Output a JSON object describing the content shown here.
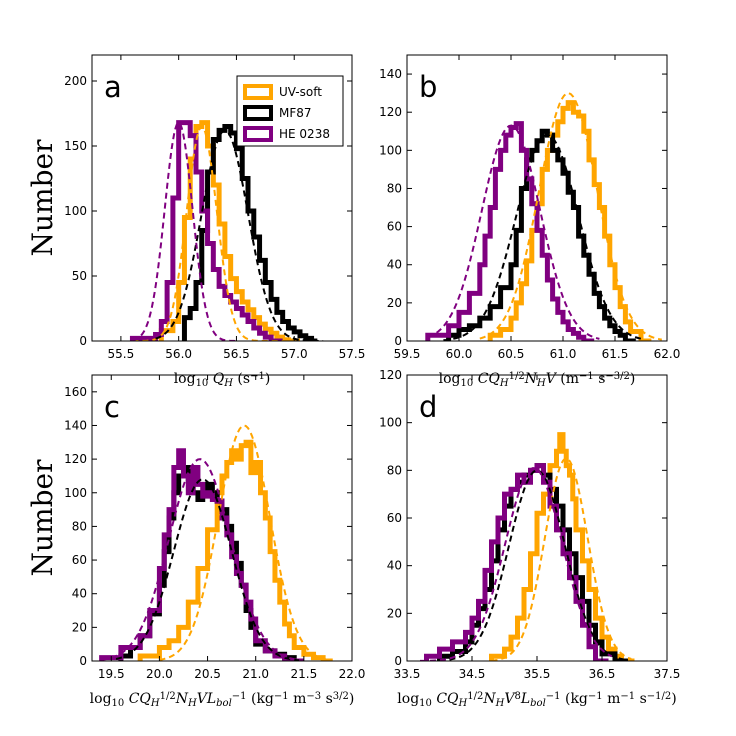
{
  "colors": {
    "uv_soft": "#ffa500",
    "mf87": "#000000",
    "he0238": "#800080"
  },
  "legend": [
    "UV-soft",
    "MF87",
    "HE 0238"
  ],
  "chart_data": [
    {
      "id": "a",
      "type": "histogram",
      "letter": "a",
      "xlim": [
        55.25,
        57.5
      ],
      "ylim": [
        0,
        220
      ],
      "xticks": [
        55.5,
        56.0,
        56.5,
        57.0,
        57.5
      ],
      "xtick_labels": [
        "55.5",
        "56.0",
        "56.5",
        "57.0",
        "57.5"
      ],
      "yticks": [
        0,
        50,
        100,
        150,
        200
      ],
      "ytick_labels": [
        "0",
        "50",
        "100",
        "150",
        "200"
      ],
      "ylabel": "Number",
      "xlabel": {
        "pre": "log",
        "sub1": "10",
        "main": "Q",
        "sub2": "H",
        "post": " (s",
        "sup": "−1",
        "end": ")"
      },
      "series": [
        {
          "name": "UV-soft",
          "edges": [
            55.85,
            55.95,
            56.0,
            56.05,
            56.1,
            56.15,
            56.2,
            56.25,
            56.3,
            56.35,
            56.4,
            56.45,
            56.5,
            56.55,
            56.6,
            56.65,
            56.7,
            56.75,
            56.8,
            56.85,
            56.9,
            56.95,
            57.05
          ],
          "values": [
            8,
            15,
            45,
            95,
            140,
            165,
            168,
            150,
            120,
            90,
            65,
            48,
            38,
            30,
            24,
            18,
            13,
            9,
            6,
            3,
            1,
            0
          ],
          "fit": {
            "mu": 56.2,
            "sigma": 0.13,
            "amp": 165,
            "range": [
              55.6,
              57.0
            ]
          }
        },
        {
          "name": "MF87",
          "edges": [
            56.05,
            56.1,
            56.15,
            56.2,
            56.25,
            56.3,
            56.35,
            56.4,
            56.45,
            56.5,
            56.55,
            56.6,
            56.65,
            56.7,
            56.75,
            56.8,
            56.85,
            56.9,
            56.95,
            57.0,
            57.05,
            57.1,
            57.15,
            57.2
          ],
          "values": [
            18,
            25,
            45,
            85,
            130,
            155,
            162,
            165,
            160,
            148,
            125,
            100,
            80,
            62,
            45,
            32,
            22,
            15,
            10,
            7,
            4,
            2,
            0
          ],
          "fit": {
            "mu": 56.4,
            "sigma": 0.2,
            "amp": 162,
            "range": [
              55.8,
              57.25
            ]
          }
        },
        {
          "name": "HE 0238",
          "edges": [
            55.6,
            55.8,
            55.85,
            55.9,
            55.95,
            56.0,
            56.05,
            56.1,
            56.15,
            56.2,
            56.25,
            56.3,
            56.35,
            56.4,
            56.45,
            56.5,
            56.55,
            56.6,
            56.65,
            56.7,
            56.75,
            56.8,
            56.9
          ],
          "values": [
            2,
            5,
            15,
            45,
            110,
            168,
            168,
            158,
            130,
            100,
            75,
            55,
            42,
            35,
            30,
            25,
            20,
            15,
            10,
            6,
            3,
            0
          ],
          "fit": {
            "mu": 56.0,
            "sigma": 0.12,
            "amp": 168,
            "range": [
              55.6,
              56.5
            ]
          }
        }
      ]
    },
    {
      "id": "b",
      "type": "histogram",
      "letter": "b",
      "xlim": [
        59.5,
        62.0
      ],
      "ylim": [
        0,
        150
      ],
      "xticks": [
        59.5,
        60.0,
        60.5,
        61.0,
        61.5,
        62.0
      ],
      "xtick_labels": [
        "59.5",
        "60.0",
        "60.5",
        "61.0",
        "61.5",
        "62.0"
      ],
      "yticks": [
        0,
        20,
        40,
        60,
        80,
        100,
        120,
        140
      ],
      "ytick_labels": [
        "0",
        "20",
        "40",
        "60",
        "80",
        "100",
        "120",
        "140"
      ],
      "ylabel": "",
      "xlabel": {
        "pre": "log",
        "sub1": "10",
        "main": "CQ",
        "sub2": "H",
        "sup1": "1/2",
        "main2": "N",
        "sub3": "H",
        "main3": "V",
        "post": " (m",
        "sup": "−1",
        "mid": "s",
        "sup2": "−3/2",
        "end": ")"
      },
      "series": [
        {
          "name": "UV-soft",
          "edges": [
            60.3,
            60.4,
            60.5,
            60.55,
            60.6,
            60.65,
            60.7,
            60.75,
            60.8,
            60.85,
            60.9,
            60.95,
            61.0,
            61.05,
            61.1,
            61.15,
            61.2,
            61.25,
            61.3,
            61.35,
            61.4,
            61.45,
            61.5,
            61.55,
            61.6,
            61.65,
            61.75,
            61.85
          ],
          "values": [
            3,
            6,
            12,
            20,
            30,
            42,
            58,
            72,
            90,
            100,
            108,
            115,
            122,
            125,
            120,
            118,
            110,
            95,
            82,
            70,
            55,
            40,
            28,
            18,
            10,
            5,
            0
          ],
          "fit": {
            "mu": 61.05,
            "sigma": 0.28,
            "amp": 130,
            "range": [
              60.2,
              61.95
            ]
          }
        },
        {
          "name": "MF87",
          "edges": [
            59.9,
            60.0,
            60.1,
            60.2,
            60.3,
            60.4,
            60.5,
            60.55,
            60.6,
            60.65,
            60.7,
            60.75,
            60.8,
            60.85,
            60.9,
            60.95,
            61.0,
            61.05,
            61.1,
            61.15,
            61.2,
            61.25,
            61.3,
            61.35,
            61.4,
            61.45,
            61.5,
            61.55,
            61.6,
            61.7
          ],
          "values": [
            3,
            6,
            8,
            12,
            18,
            28,
            40,
            58,
            80,
            95,
            100,
            105,
            110,
            108,
            100,
            95,
            88,
            78,
            70,
            55,
            45,
            35,
            25,
            18,
            12,
            8,
            5,
            3,
            0
          ],
          "fit": {
            "mu": 60.85,
            "sigma": 0.3,
            "amp": 108,
            "range": [
              59.85,
              61.75
            ]
          }
        },
        {
          "name": "HE 0238",
          "edges": [
            59.7,
            59.9,
            60.0,
            60.1,
            60.2,
            60.25,
            60.3,
            60.35,
            60.4,
            60.45,
            60.5,
            60.55,
            60.6,
            60.65,
            60.7,
            60.75,
            60.8,
            60.85,
            60.9,
            60.95,
            61.0,
            61.05,
            61.1,
            61.15,
            61.2,
            61.3
          ],
          "values": [
            3,
            8,
            15,
            25,
            40,
            55,
            70,
            90,
            100,
            108,
            112,
            114,
            100,
            85,
            72,
            58,
            45,
            32,
            22,
            15,
            10,
            6,
            4,
            2,
            0
          ],
          "fit": {
            "mu": 60.5,
            "sigma": 0.28,
            "amp": 113,
            "range": [
              59.7,
              61.35
            ]
          }
        }
      ]
    },
    {
      "id": "c",
      "type": "histogram",
      "letter": "c",
      "xlim": [
        19.3,
        22.0
      ],
      "ylim": [
        0,
        170
      ],
      "xticks": [
        19.5,
        20.0,
        20.5,
        21.0,
        21.5,
        22.0
      ],
      "xtick_labels": [
        "19.5",
        "20.0",
        "20.5",
        "21.0",
        "21.5",
        "22.0"
      ],
      "yticks": [
        0,
        20,
        40,
        60,
        80,
        100,
        120,
        140,
        160
      ],
      "ytick_labels": [
        "0",
        "20",
        "40",
        "60",
        "80",
        "100",
        "120",
        "140",
        "160"
      ],
      "ylabel": "Number",
      "xlabel": {
        "pre": "log",
        "sub1": "10",
        "main": "CQ",
        "sub2": "H",
        "sup1": "1/2",
        "main2": "N",
        "sub3": "H",
        "main3": "VL",
        "sub4": "bol",
        "sup3": "−1",
        "post": " (kg",
        "sup": "−1",
        "mid": "m",
        "sup2": "−3",
        "mid2": "s",
        "sup4": "3/2",
        "end": ")"
      },
      "series": [
        {
          "name": "UV-soft",
          "edges": [
            19.8,
            20.0,
            20.1,
            20.2,
            20.3,
            20.4,
            20.5,
            20.6,
            20.65,
            20.7,
            20.75,
            20.8,
            20.85,
            20.9,
            20.95,
            21.0,
            21.05,
            21.1,
            21.15,
            21.2,
            21.25,
            21.3,
            21.35,
            21.4,
            21.5,
            21.6,
            21.7,
            21.8
          ],
          "values": [
            3,
            8,
            12,
            20,
            35,
            55,
            78,
            100,
            110,
            118,
            125,
            120,
            128,
            130,
            112,
            118,
            100,
            85,
            65,
            48,
            35,
            22,
            15,
            8,
            4,
            2,
            0
          ],
          "fit": {
            "mu": 20.88,
            "sigma": 0.27,
            "amp": 140,
            "range": [
              20.0,
              21.75
            ]
          }
        },
        {
          "name": "MF87",
          "edges": [
            19.6,
            19.7,
            19.8,
            19.9,
            20.0,
            20.05,
            20.1,
            20.15,
            20.2,
            20.25,
            20.3,
            20.35,
            20.4,
            20.45,
            20.5,
            20.55,
            20.6,
            20.65,
            20.7,
            20.75,
            20.8,
            20.85,
            20.9,
            20.95,
            21.0,
            21.1,
            21.2,
            21.3,
            21.4,
            21.5
          ],
          "values": [
            3,
            8,
            15,
            28,
            45,
            65,
            85,
            100,
            110,
            115,
            108,
            100,
            96,
            100,
            105,
            100,
            95,
            90,
            80,
            70,
            58,
            45,
            30,
            20,
            10,
            6,
            4,
            2,
            0
          ],
          "fit": {
            "mu": 20.45,
            "sigma": 0.3,
            "amp": 108,
            "range": [
              19.55,
              21.45
            ]
          }
        },
        {
          "name": "HE 0238",
          "edges": [
            19.4,
            19.6,
            19.8,
            19.9,
            20.0,
            20.05,
            20.1,
            20.15,
            20.2,
            20.25,
            20.3,
            20.35,
            20.4,
            20.45,
            20.5,
            20.55,
            20.6,
            20.65,
            20.7,
            20.75,
            20.8,
            20.85,
            20.9,
            20.95,
            21.0,
            21.1,
            21.2,
            21.3,
            21.5
          ],
          "values": [
            2,
            8,
            15,
            30,
            55,
            75,
            90,
            115,
            125,
            110,
            100,
            115,
            105,
            98,
            100,
            96,
            95,
            85,
            75,
            62,
            52,
            45,
            35,
            25,
            12,
            6,
            3,
            0
          ],
          "fit": {
            "mu": 20.42,
            "sigma": 0.32,
            "amp": 120,
            "range": [
              19.4,
              21.4
            ]
          }
        }
      ]
    },
    {
      "id": "d",
      "type": "histogram",
      "letter": "d",
      "xlim": [
        33.5,
        37.5
      ],
      "ylim": [
        0,
        120
      ],
      "xticks": [
        33.5,
        34.5,
        35.5,
        36.5,
        37.5
      ],
      "xtick_labels": [
        "33.5",
        "34.5",
        "35.5",
        "36.5",
        "37.5"
      ],
      "yticks": [
        0,
        20,
        40,
        60,
        80,
        100,
        120
      ],
      "ytick_labels": [
        "0",
        "20",
        "40",
        "60",
        "80",
        "100",
        "120"
      ],
      "ylabel": "",
      "xlabel": {
        "pre": "log",
        "sub1": "10",
        "main": "CQ",
        "sub2": "H",
        "sup1": "1/2",
        "main2": "N",
        "sub3": "H",
        "main3": "V",
        "sup5": "8",
        "main4": "L",
        "sub4": "bol",
        "sup3": "−1",
        "post": " (kg",
        "sup": "−1",
        "mid": "m",
        "sup2": "−1",
        "mid2": "s",
        "sup4": "−1/2",
        "end": ")"
      },
      "series": [
        {
          "name": "UV-soft",
          "edges": [
            34.8,
            35.0,
            35.1,
            35.2,
            35.3,
            35.4,
            35.5,
            35.6,
            35.7,
            35.8,
            35.85,
            35.9,
            35.95,
            36.0,
            36.05,
            36.1,
            36.2,
            36.3,
            36.4,
            36.5,
            36.6,
            36.7,
            36.8,
            37.0
          ],
          "values": [
            2,
            5,
            10,
            18,
            30,
            45,
            62,
            70,
            82,
            88,
            95,
            88,
            82,
            78,
            68,
            55,
            42,
            30,
            18,
            10,
            5,
            2,
            0
          ],
          "fit": {
            "mu": 35.95,
            "sigma": 0.33,
            "amp": 85,
            "range": [
              34.8,
              36.95
            ]
          }
        },
        {
          "name": "MF87",
          "edges": [
            34.0,
            34.2,
            34.4,
            34.5,
            34.6,
            34.7,
            34.8,
            34.9,
            35.0,
            35.1,
            35.2,
            35.3,
            35.4,
            35.5,
            35.6,
            35.7,
            35.8,
            35.9,
            36.0,
            36.1,
            36.2,
            36.3,
            36.4,
            36.5,
            36.7,
            36.9
          ],
          "values": [
            2,
            4,
            8,
            15,
            22,
            30,
            42,
            55,
            65,
            72,
            75,
            78,
            80,
            82,
            78,
            72,
            65,
            55,
            45,
            35,
            25,
            15,
            8,
            3,
            0
          ],
          "fit": {
            "mu": 35.5,
            "sigma": 0.43,
            "amp": 80,
            "range": [
              34.0,
              36.9
            ]
          }
        },
        {
          "name": "HE 0238",
          "edges": [
            33.8,
            34.0,
            34.2,
            34.4,
            34.5,
            34.6,
            34.7,
            34.8,
            34.9,
            35.0,
            35.1,
            35.2,
            35.3,
            35.4,
            35.5,
            35.6,
            35.7,
            35.8,
            35.9,
            36.0,
            36.1,
            36.2,
            36.3,
            36.4,
            36.6
          ],
          "values": [
            2,
            5,
            8,
            12,
            18,
            25,
            38,
            50,
            60,
            70,
            72,
            78,
            75,
            80,
            82,
            75,
            65,
            55,
            45,
            35,
            25,
            15,
            6,
            0
          ],
          "fit": {
            "mu": 35.45,
            "sigma": 0.44,
            "amp": 81,
            "range": [
              33.7,
              36.65
            ]
          }
        }
      ]
    }
  ]
}
